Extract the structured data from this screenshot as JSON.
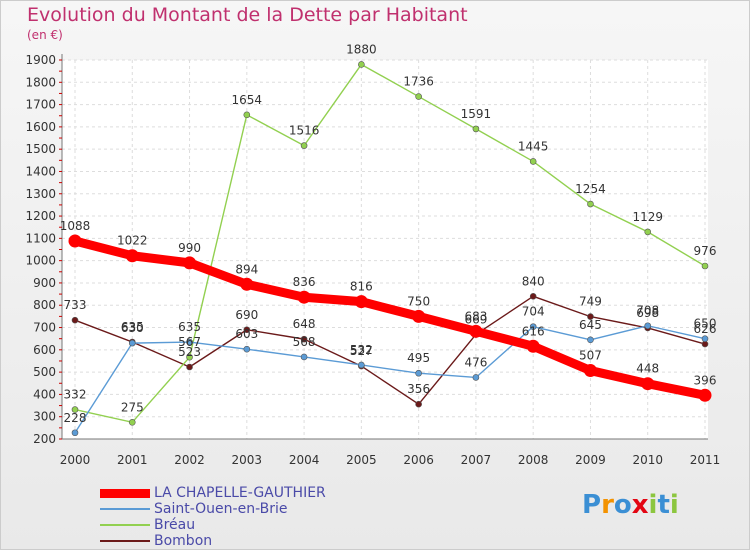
{
  "chart_data": {
    "type": "line",
    "title": "Evolution du Montant de la Dette par Habitant",
    "subtitle": "(en €)",
    "x": [
      "2000",
      "2001",
      "2002",
      "2003",
      "2004",
      "2005",
      "2006",
      "2007",
      "2008",
      "2009",
      "2010",
      "2011"
    ],
    "ylim": [
      200,
      1900
    ],
    "yticks": [
      200,
      300,
      400,
      500,
      600,
      700,
      800,
      900,
      1000,
      1100,
      1200,
      1300,
      1400,
      1500,
      1600,
      1700,
      1800,
      1900
    ],
    "grid": true,
    "legend_position": "bottom-left",
    "series": [
      {
        "name": "LA CHAPELLE-GAUTHIER",
        "color": "#ff0000",
        "values": [
          1088,
          1022,
          990,
          894,
          836,
          816,
          750,
          683,
          616,
          507,
          448,
          396
        ]
      },
      {
        "name": "Saint-Ouen-en-Brie",
        "color": "#5b9bd5",
        "values": [
          228,
          630,
          635,
          603,
          568,
          532,
          495,
          476,
          704,
          645,
          708,
          650
        ]
      },
      {
        "name": "Bréau",
        "color": "#92d050",
        "values": [
          332,
          275,
          567,
          1654,
          1516,
          1880,
          1736,
          1591,
          1445,
          1254,
          1129,
          976
        ]
      },
      {
        "name": "Bombon",
        "color": "#6b1a1a",
        "values": [
          733,
          635,
          523,
          690,
          648,
          527,
          356,
          669,
          840,
          749,
          698,
          626
        ]
      }
    ]
  },
  "logo": {
    "letters": [
      "P",
      "r",
      "o",
      "x",
      "i",
      "t",
      "i"
    ],
    "colors": [
      "#3b8fd4",
      "#f39200",
      "#3b8fd4",
      "#e30613",
      "#8cc63f",
      "#3b8fd4",
      "#8cc63f"
    ]
  }
}
